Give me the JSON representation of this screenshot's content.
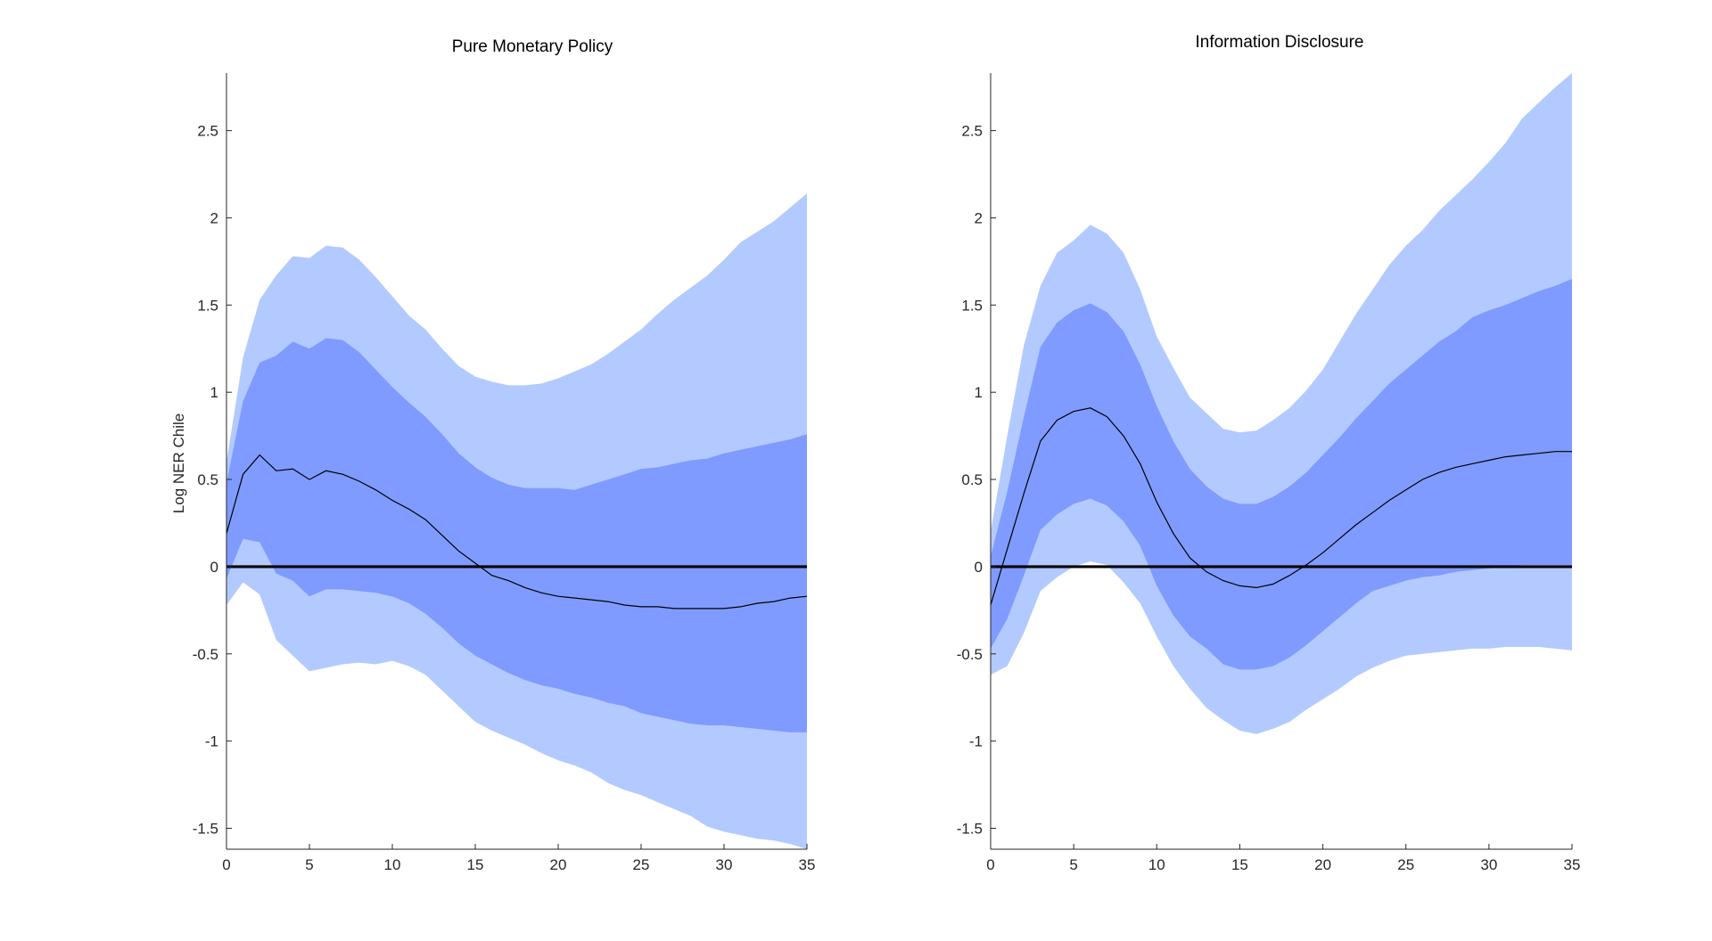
{
  "colors": {
    "outer_band": "#b2caff",
    "inner_band": "#7f9bff",
    "median": "#000000",
    "zero_line": "#000000",
    "background": "#ffffff"
  },
  "chart_data": [
    {
      "type": "area",
      "title": "Pure Monetary Policy",
      "xlabel": "",
      "ylabel": "Log NER Chile",
      "xlim": [
        0,
        35
      ],
      "ylim": [
        -1.62,
        2.83
      ],
      "xticks": [
        0,
        5,
        10,
        15,
        20,
        25,
        30,
        35
      ],
      "yticks": [
        -1.5,
        -1,
        -0.5,
        0,
        0.5,
        1,
        1.5,
        2,
        2.5
      ],
      "ytick_labels": [
        "-1.5",
        "-1",
        "-0.5",
        "0",
        "0.5",
        "1",
        "1.5",
        "2",
        "2.5"
      ],
      "zero_line": 0,
      "x": [
        0,
        1,
        2,
        3,
        4,
        5,
        6,
        7,
        8,
        9,
        10,
        11,
        12,
        13,
        14,
        15,
        16,
        17,
        18,
        19,
        20,
        21,
        22,
        23,
        24,
        25,
        26,
        27,
        28,
        29,
        30,
        31,
        32,
        33,
        34,
        35
      ],
      "series": [
        {
          "name": "median",
          "values": [
            0.19,
            0.53,
            0.64,
            0.55,
            0.56,
            0.5,
            0.55,
            0.53,
            0.49,
            0.44,
            0.38,
            0.33,
            0.27,
            0.18,
            0.09,
            0.02,
            -0.05,
            -0.08,
            -0.12,
            -0.15,
            -0.17,
            -0.18,
            -0.19,
            -0.2,
            -0.22,
            -0.23,
            -0.23,
            -0.24,
            -0.24,
            -0.24,
            -0.24,
            -0.23,
            -0.21,
            -0.2,
            -0.18,
            -0.17
          ]
        },
        {
          "name": "inner_upper",
          "values": [
            0.48,
            0.95,
            1.17,
            1.21,
            1.29,
            1.25,
            1.31,
            1.3,
            1.23,
            1.13,
            1.03,
            0.94,
            0.86,
            0.76,
            0.65,
            0.57,
            0.51,
            0.47,
            0.45,
            0.45,
            0.45,
            0.44,
            0.47,
            0.5,
            0.53,
            0.56,
            0.57,
            0.59,
            0.61,
            0.62,
            0.65,
            0.67,
            0.69,
            0.71,
            0.73,
            0.76
          ]
        },
        {
          "name": "inner_lower",
          "values": [
            -0.07,
            0.16,
            0.14,
            -0.04,
            -0.08,
            -0.17,
            -0.13,
            -0.13,
            -0.14,
            -0.15,
            -0.17,
            -0.21,
            -0.27,
            -0.35,
            -0.44,
            -0.51,
            -0.56,
            -0.61,
            -0.65,
            -0.68,
            -0.7,
            -0.73,
            -0.75,
            -0.78,
            -0.8,
            -0.84,
            -0.86,
            -0.88,
            -0.9,
            -0.91,
            -0.91,
            -0.92,
            -0.93,
            -0.94,
            -0.95,
            -0.95
          ]
        },
        {
          "name": "outer_upper",
          "values": [
            0.6,
            1.2,
            1.53,
            1.67,
            1.78,
            1.77,
            1.84,
            1.83,
            1.76,
            1.66,
            1.55,
            1.44,
            1.36,
            1.25,
            1.15,
            1.09,
            1.06,
            1.04,
            1.04,
            1.05,
            1.08,
            1.12,
            1.16,
            1.22,
            1.29,
            1.36,
            1.45,
            1.53,
            1.6,
            1.67,
            1.76,
            1.86,
            1.92,
            1.98,
            2.06,
            2.14
          ]
        },
        {
          "name": "outer_lower",
          "values": [
            -0.22,
            -0.09,
            -0.16,
            -0.42,
            -0.51,
            -0.6,
            -0.58,
            -0.56,
            -0.55,
            -0.56,
            -0.54,
            -0.57,
            -0.62,
            -0.71,
            -0.8,
            -0.89,
            -0.94,
            -0.98,
            -1.02,
            -1.07,
            -1.11,
            -1.14,
            -1.18,
            -1.24,
            -1.28,
            -1.31,
            -1.35,
            -1.39,
            -1.43,
            -1.49,
            -1.52,
            -1.54,
            -1.56,
            -1.57,
            -1.59,
            -1.62
          ]
        }
      ]
    },
    {
      "type": "area",
      "title": "Information Disclosure",
      "xlabel": "",
      "ylabel": "",
      "xlim": [
        0,
        35
      ],
      "ylim": [
        -1.62,
        2.83
      ],
      "xticks": [
        0,
        5,
        10,
        15,
        20,
        25,
        30,
        35
      ],
      "yticks": [
        -1.5,
        -1,
        -0.5,
        0,
        0.5,
        1,
        1.5,
        2,
        2.5
      ],
      "ytick_labels": [
        "-1.5",
        "-1",
        "-0.5",
        "0",
        "0.5",
        "1",
        "1.5",
        "2",
        "2.5"
      ],
      "zero_line": 0,
      "x": [
        0,
        1,
        2,
        3,
        4,
        5,
        6,
        7,
        8,
        9,
        10,
        11,
        12,
        13,
        14,
        15,
        16,
        17,
        18,
        19,
        20,
        21,
        22,
        23,
        24,
        25,
        26,
        27,
        28,
        29,
        30,
        31,
        32,
        33,
        34,
        35
      ],
      "series": [
        {
          "name": "median",
          "values": [
            -0.22,
            0.1,
            0.42,
            0.72,
            0.84,
            0.89,
            0.91,
            0.86,
            0.75,
            0.59,
            0.37,
            0.19,
            0.05,
            -0.03,
            -0.08,
            -0.11,
            -0.12,
            -0.1,
            -0.05,
            0.01,
            0.08,
            0.16,
            0.24,
            0.31,
            0.38,
            0.44,
            0.5,
            0.54,
            0.57,
            0.59,
            0.61,
            0.63,
            0.64,
            0.65,
            0.66,
            0.66
          ]
        },
        {
          "name": "inner_upper",
          "values": [
            0.06,
            0.43,
            0.86,
            1.26,
            1.4,
            1.47,
            1.51,
            1.46,
            1.35,
            1.16,
            0.92,
            0.72,
            0.56,
            0.46,
            0.39,
            0.36,
            0.36,
            0.4,
            0.46,
            0.54,
            0.64,
            0.74,
            0.85,
            0.95,
            1.05,
            1.13,
            1.21,
            1.29,
            1.35,
            1.43,
            1.47,
            1.5,
            1.54,
            1.58,
            1.61,
            1.65
          ]
        },
        {
          "name": "inner_lower",
          "values": [
            -0.47,
            -0.3,
            -0.05,
            0.21,
            0.3,
            0.36,
            0.39,
            0.35,
            0.26,
            0.12,
            -0.11,
            -0.28,
            -0.4,
            -0.47,
            -0.56,
            -0.59,
            -0.59,
            -0.57,
            -0.52,
            -0.45,
            -0.37,
            -0.29,
            -0.21,
            -0.14,
            -0.11,
            -0.08,
            -0.06,
            -0.05,
            -0.03,
            -0.02,
            -0.01,
            0.0,
            0.01,
            0.01,
            0.01,
            0.01
          ]
        },
        {
          "name": "outer_upper",
          "values": [
            0.2,
            0.75,
            1.27,
            1.61,
            1.8,
            1.87,
            1.96,
            1.91,
            1.8,
            1.59,
            1.32,
            1.14,
            0.97,
            0.88,
            0.79,
            0.77,
            0.78,
            0.84,
            0.91,
            1.01,
            1.13,
            1.29,
            1.45,
            1.59,
            1.73,
            1.84,
            1.93,
            2.04,
            2.13,
            2.22,
            2.32,
            2.43,
            2.57,
            2.66,
            2.75,
            2.83
          ]
        },
        {
          "name": "outer_lower",
          "values": [
            -0.62,
            -0.57,
            -0.38,
            -0.14,
            -0.06,
            0.0,
            0.03,
            0.01,
            -0.09,
            -0.21,
            -0.4,
            -0.57,
            -0.7,
            -0.81,
            -0.88,
            -0.94,
            -0.96,
            -0.93,
            -0.89,
            -0.82,
            -0.76,
            -0.7,
            -0.63,
            -0.58,
            -0.54,
            -0.51,
            -0.5,
            -0.49,
            -0.48,
            -0.47,
            -0.47,
            -0.46,
            -0.46,
            -0.46,
            -0.47,
            -0.48
          ]
        }
      ]
    }
  ]
}
